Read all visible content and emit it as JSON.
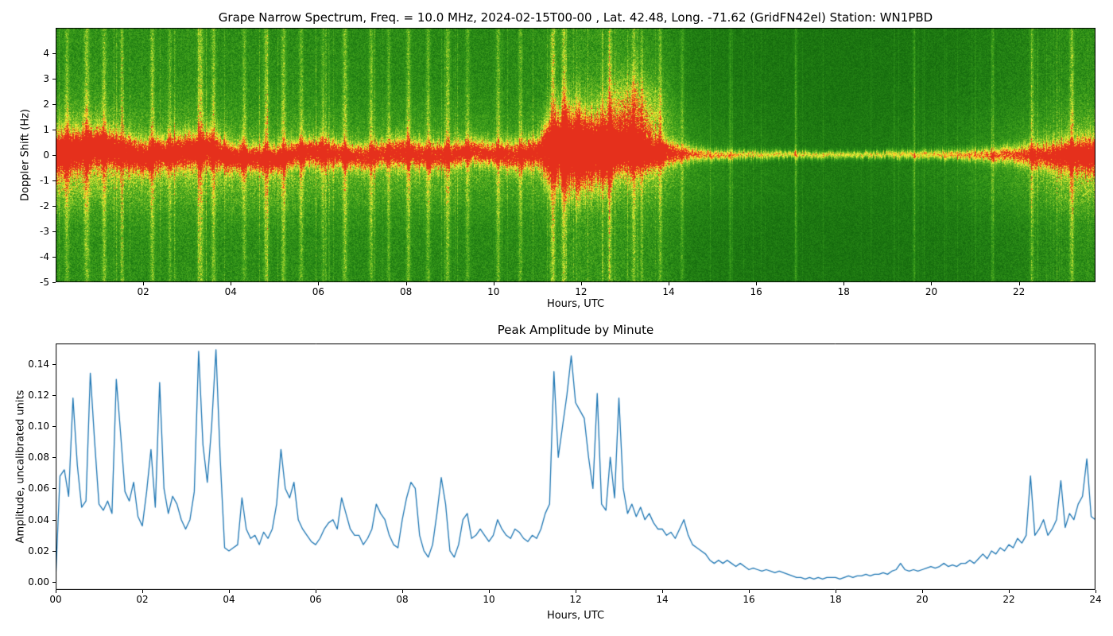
{
  "figure": {
    "background": "#ffffff"
  },
  "chart_data": [
    {
      "type": "heatmap",
      "subtype": "doppler-spectrogram",
      "title": "Grape Narrow Spectrum, Freq. = 10.0 MHz, 2024-02-15T00-00 , Lat.  42.48, Long. -71.62 (GridFN42el) Station: WN1PBD",
      "xlabel": "Hours, UTC",
      "ylabel": "Doppler Shift (Hz)",
      "xlim": [
        0,
        23.75
      ],
      "ylim": [
        -5,
        5
      ],
      "xticks": [
        "02",
        "04",
        "06",
        "08",
        "10",
        "12",
        "14",
        "16",
        "18",
        "20",
        "22"
      ],
      "yticks": [
        "4",
        "3",
        "2",
        "1",
        "0",
        "-1",
        "-2",
        "-3",
        "-4",
        "-5"
      ],
      "grid": false,
      "legend": "none",
      "colormap": [
        [
          0.0,
          "#0a4d08"
        ],
        [
          0.22,
          "#156b0e"
        ],
        [
          0.4,
          "#2a8c17"
        ],
        [
          0.55,
          "#49a81e"
        ],
        [
          0.66,
          "#7ec228"
        ],
        [
          0.75,
          "#b4d930"
        ],
        [
          0.83,
          "#eef13c"
        ],
        [
          0.9,
          "#ffd627"
        ],
        [
          0.95,
          "#fc8c20"
        ],
        [
          1.0,
          "#e5301c"
        ]
      ],
      "render": {
        "activity": [
          [
            0,
            0.72
          ],
          [
            1,
            0.75
          ],
          [
            2,
            0.7
          ],
          [
            3,
            0.72
          ],
          [
            4,
            0.68
          ],
          [
            5,
            0.66
          ],
          [
            6,
            0.64
          ],
          [
            7,
            0.62
          ],
          [
            8,
            0.62
          ],
          [
            9,
            0.6
          ],
          [
            10,
            0.6
          ],
          [
            11,
            0.66
          ],
          [
            11.5,
            0.8
          ],
          [
            12,
            0.85
          ],
          [
            13,
            0.8
          ],
          [
            13.8,
            0.7
          ],
          [
            14.5,
            0.4
          ],
          [
            15.5,
            0.3
          ],
          [
            16.5,
            0.26
          ],
          [
            18,
            0.24
          ],
          [
            19.5,
            0.26
          ],
          [
            20.5,
            0.3
          ],
          [
            21.5,
            0.4
          ],
          [
            22.5,
            0.55
          ],
          [
            23.3,
            0.68
          ],
          [
            24,
            0.72
          ]
        ],
        "band_center": [
          [
            0,
            0.0
          ],
          [
            0.5,
            0.2
          ],
          [
            1,
            0.3
          ],
          [
            1.5,
            0.1
          ],
          [
            2,
            -0.1
          ],
          [
            2.5,
            0.05
          ],
          [
            3,
            0.15
          ],
          [
            3.5,
            0.2
          ],
          [
            4,
            -0.1
          ],
          [
            5,
            -0.15
          ],
          [
            5.5,
            0.05
          ],
          [
            6,
            0.1
          ],
          [
            6.5,
            0.0
          ],
          [
            7,
            -0.1
          ],
          [
            7.5,
            0.05
          ],
          [
            8,
            0.1
          ],
          [
            8.5,
            -0.05
          ],
          [
            9,
            0.0
          ],
          [
            9.5,
            0.15
          ],
          [
            10,
            0.05
          ],
          [
            10.5,
            -0.05
          ],
          [
            11,
            0.1
          ],
          [
            11.5,
            0.35
          ],
          [
            12,
            0.2
          ],
          [
            12.5,
            0.15
          ],
          [
            13,
            0.3
          ],
          [
            13.5,
            0.1
          ],
          [
            14,
            0.05
          ],
          [
            15,
            0.0
          ],
          [
            16,
            0.02
          ],
          [
            17,
            0.0
          ],
          [
            18,
            0.0
          ],
          [
            19,
            0.02
          ],
          [
            20,
            0.0
          ],
          [
            21,
            0.02
          ],
          [
            22,
            0.0
          ],
          [
            23,
            -0.05
          ],
          [
            24,
            0.0
          ]
        ],
        "band_amp": [
          [
            0,
            0.95
          ],
          [
            1,
            0.92
          ],
          [
            2,
            0.9
          ],
          [
            3,
            0.92
          ],
          [
            4,
            0.85
          ],
          [
            5,
            0.85
          ],
          [
            6,
            0.85
          ],
          [
            7,
            0.82
          ],
          [
            8,
            0.85
          ],
          [
            9,
            0.82
          ],
          [
            10,
            0.8
          ],
          [
            11,
            0.9
          ],
          [
            11.5,
            1.05
          ],
          [
            12,
            1.05
          ],
          [
            12.5,
            0.95
          ],
          [
            13,
            1.0
          ],
          [
            13.5,
            0.9
          ],
          [
            14,
            0.8
          ],
          [
            15,
            0.72
          ],
          [
            16,
            0.68
          ],
          [
            17,
            0.66
          ],
          [
            18,
            0.66
          ],
          [
            19,
            0.66
          ],
          [
            20,
            0.68
          ],
          [
            21,
            0.7
          ],
          [
            22,
            0.75
          ],
          [
            23,
            0.85
          ],
          [
            24,
            0.9
          ]
        ],
        "band_width": [
          [
            0,
            0.5
          ],
          [
            1,
            0.48
          ],
          [
            2,
            0.42
          ],
          [
            3,
            0.45
          ],
          [
            4,
            0.38
          ],
          [
            5,
            0.35
          ],
          [
            6,
            0.35
          ],
          [
            7,
            0.33
          ],
          [
            8,
            0.36
          ],
          [
            9,
            0.33
          ],
          [
            10,
            0.32
          ],
          [
            11,
            0.4
          ],
          [
            11.4,
            0.9
          ],
          [
            11.9,
            1.1
          ],
          [
            12.4,
            0.8
          ],
          [
            13,
            0.55
          ],
          [
            13.6,
            0.4
          ],
          [
            14.2,
            0.25
          ],
          [
            15,
            0.14
          ],
          [
            16,
            0.11
          ],
          [
            18,
            0.1
          ],
          [
            20,
            0.12
          ],
          [
            21,
            0.16
          ],
          [
            22,
            0.25
          ],
          [
            23,
            0.38
          ],
          [
            24,
            0.48
          ]
        ],
        "sub_fuzz": [
          [
            0,
            0.55
          ],
          [
            0.8,
            0.5
          ],
          [
            1.5,
            0.35
          ],
          [
            2.5,
            0.3
          ],
          [
            3.5,
            0.35
          ],
          [
            4.5,
            0.3
          ],
          [
            5.5,
            0.32
          ],
          [
            6.5,
            0.26
          ],
          [
            7.5,
            0.26
          ],
          [
            8.5,
            0.3
          ],
          [
            9.5,
            0.26
          ],
          [
            10.5,
            0.22
          ],
          [
            11.5,
            0.3
          ],
          [
            12.5,
            0.32
          ],
          [
            13.5,
            0.3
          ],
          [
            14.5,
            0.18
          ],
          [
            15.5,
            0.1
          ],
          [
            17,
            0.05
          ],
          [
            19,
            0.06
          ],
          [
            20.5,
            0.12
          ],
          [
            21.5,
            0.2
          ],
          [
            22.5,
            0.3
          ],
          [
            23.2,
            0.42
          ],
          [
            24,
            0.5
          ]
        ],
        "plume": [
          13.15,
          0.5,
          1.3,
          1.2,
          0.5
        ],
        "streaks": [
          [
            0.25,
            0.25,
            0.05
          ],
          [
            0.7,
            0.3,
            0.06
          ],
          [
            1.1,
            0.28,
            0.05
          ],
          [
            1.5,
            0.22,
            0.04
          ],
          [
            2.2,
            0.3,
            0.05
          ],
          [
            2.6,
            0.2,
            0.04
          ],
          [
            3.3,
            0.35,
            0.07
          ],
          [
            3.6,
            0.3,
            0.05
          ],
          [
            4.3,
            0.22,
            0.05
          ],
          [
            4.8,
            0.28,
            0.06
          ],
          [
            5.2,
            0.3,
            0.05
          ],
          [
            5.6,
            0.25,
            0.05
          ],
          [
            6.1,
            0.22,
            0.04
          ],
          [
            6.6,
            0.3,
            0.06
          ],
          [
            7.2,
            0.28,
            0.05
          ],
          [
            7.6,
            0.22,
            0.04
          ],
          [
            8.05,
            0.3,
            0.05
          ],
          [
            8.5,
            0.25,
            0.05
          ],
          [
            8.95,
            0.3,
            0.05
          ],
          [
            9.4,
            0.22,
            0.05
          ],
          [
            10.1,
            0.28,
            0.05
          ],
          [
            10.6,
            0.22,
            0.04
          ],
          [
            11.35,
            0.4,
            0.06
          ],
          [
            11.6,
            0.35,
            0.05
          ],
          [
            12.65,
            0.3,
            0.05
          ],
          [
            13.2,
            0.28,
            0.05
          ],
          [
            13.8,
            0.25,
            0.04
          ],
          [
            14.3,
            0.2,
            0.04
          ],
          [
            15.4,
            0.18,
            0.03
          ],
          [
            16.9,
            0.22,
            0.03
          ],
          [
            19.6,
            0.2,
            0.03
          ],
          [
            21.4,
            0.18,
            0.03
          ],
          [
            22.3,
            0.25,
            0.04
          ],
          [
            23.2,
            0.3,
            0.05
          ]
        ]
      }
    },
    {
      "type": "line",
      "title": "Peak Amplitude by Minute",
      "xlabel": "Hours, UTC",
      "ylabel": "Amplitude, uncalibrated units",
      "xlim": [
        0,
        24
      ],
      "ylim": [
        -0.005,
        0.153
      ],
      "xticks": [
        "00",
        "02",
        "04",
        "06",
        "08",
        "10",
        "12",
        "14",
        "16",
        "18",
        "20",
        "22",
        "24"
      ],
      "yticks": [
        "0.00",
        "0.02",
        "0.04",
        "0.06",
        "0.08",
        "0.10",
        "0.12",
        "0.14"
      ],
      "grid": false,
      "legend": "none",
      "line_color": "#1f77b4",
      "x_start": 0,
      "x_step_hours": 0.1,
      "values": [
        0.002,
        0.068,
        0.072,
        0.055,
        0.118,
        0.075,
        0.048,
        0.052,
        0.134,
        0.09,
        0.05,
        0.046,
        0.052,
        0.044,
        0.13,
        0.095,
        0.058,
        0.052,
        0.064,
        0.042,
        0.036,
        0.058,
        0.085,
        0.048,
        0.128,
        0.06,
        0.044,
        0.055,
        0.05,
        0.04,
        0.034,
        0.04,
        0.058,
        0.148,
        0.088,
        0.064,
        0.1,
        0.149,
        0.078,
        0.022,
        0.02,
        0.022,
        0.024,
        0.054,
        0.034,
        0.028,
        0.03,
        0.024,
        0.032,
        0.028,
        0.034,
        0.05,
        0.085,
        0.06,
        0.054,
        0.064,
        0.04,
        0.034,
        0.03,
        0.026,
        0.024,
        0.028,
        0.034,
        0.038,
        0.04,
        0.034,
        0.054,
        0.044,
        0.034,
        0.03,
        0.03,
        0.024,
        0.028,
        0.034,
        0.05,
        0.044,
        0.04,
        0.03,
        0.024,
        0.022,
        0.04,
        0.054,
        0.064,
        0.06,
        0.03,
        0.02,
        0.016,
        0.024,
        0.044,
        0.067,
        0.05,
        0.02,
        0.016,
        0.024,
        0.04,
        0.044,
        0.028,
        0.03,
        0.034,
        0.03,
        0.026,
        0.03,
        0.04,
        0.034,
        0.03,
        0.028,
        0.034,
        0.032,
        0.028,
        0.026,
        0.03,
        0.028,
        0.034,
        0.044,
        0.05,
        0.135,
        0.08,
        0.1,
        0.12,
        0.145,
        0.115,
        0.11,
        0.105,
        0.08,
        0.06,
        0.121,
        0.05,
        0.046,
        0.08,
        0.054,
        0.118,
        0.06,
        0.044,
        0.05,
        0.042,
        0.048,
        0.04,
        0.044,
        0.038,
        0.034,
        0.034,
        0.03,
        0.032,
        0.028,
        0.034,
        0.04,
        0.03,
        0.024,
        0.022,
        0.02,
        0.018,
        0.014,
        0.012,
        0.014,
        0.012,
        0.014,
        0.012,
        0.01,
        0.012,
        0.01,
        0.008,
        0.009,
        0.008,
        0.007,
        0.008,
        0.007,
        0.006,
        0.007,
        0.006,
        0.005,
        0.004,
        0.003,
        0.003,
        0.002,
        0.003,
        0.002,
        0.003,
        0.002,
        0.003,
        0.003,
        0.003,
        0.002,
        0.003,
        0.004,
        0.003,
        0.004,
        0.004,
        0.005,
        0.004,
        0.005,
        0.005,
        0.006,
        0.005,
        0.007,
        0.008,
        0.012,
        0.008,
        0.007,
        0.008,
        0.007,
        0.008,
        0.009,
        0.01,
        0.009,
        0.01,
        0.012,
        0.01,
        0.011,
        0.01,
        0.012,
        0.012,
        0.014,
        0.012,
        0.015,
        0.018,
        0.015,
        0.02,
        0.018,
        0.022,
        0.02,
        0.024,
        0.022,
        0.028,
        0.025,
        0.03,
        0.068,
        0.03,
        0.034,
        0.04,
        0.03,
        0.034,
        0.04,
        0.065,
        0.035,
        0.044,
        0.04,
        0.05,
        0.055,
        0.079,
        0.042,
        0.04
      ]
    }
  ]
}
